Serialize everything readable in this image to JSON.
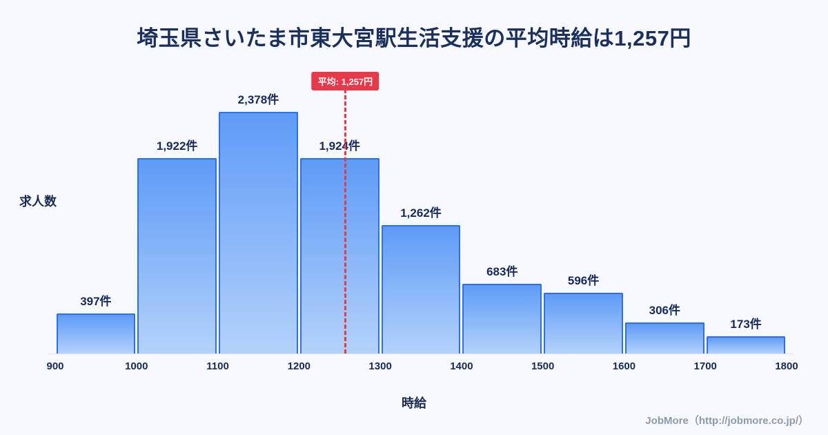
{
  "page": {
    "title": "埼玉県さいたま市東大宮駅生活支援の平均時給は1,257円",
    "footer": "JobMore（http://jobmore.co.jp/）"
  },
  "chart_data": {
    "type": "bar",
    "subtype": "histogram",
    "title": "埼玉県さいたま市東大宮駅生活支援の平均時給は1,257円",
    "xlabel": "時給",
    "ylabel": "求人数",
    "bin_edges": [
      900,
      1000,
      1100,
      1200,
      1300,
      1400,
      1500,
      1600,
      1700,
      1800
    ],
    "x_ticks": [
      "900",
      "1000",
      "1100",
      "1200",
      "1300",
      "1400",
      "1500",
      "1600",
      "1700",
      "1800"
    ],
    "values": [
      397,
      1922,
      2378,
      1924,
      1262,
      683,
      596,
      306,
      173
    ],
    "value_labels": [
      "397件",
      "1,922件",
      "2,378件",
      "1,924件",
      "1,262件",
      "683件",
      "596件",
      "306件",
      "173件"
    ],
    "unit": "件",
    "average": {
      "value": 1257,
      "label": "平均: 1,257円"
    },
    "ylim": [
      0,
      2378
    ],
    "grid": false,
    "legend": false,
    "colors": {
      "background": "#f7f9fd",
      "bar_gradient_top": "#5e9bf7",
      "bar_gradient_bottom": "#b3d2fa",
      "bar_border": "#2f6fe4",
      "average_line": "#e8394a",
      "title_text": "#1b2f5e",
      "label_text": "#16295a",
      "footer_text": "#8e9aab"
    }
  }
}
